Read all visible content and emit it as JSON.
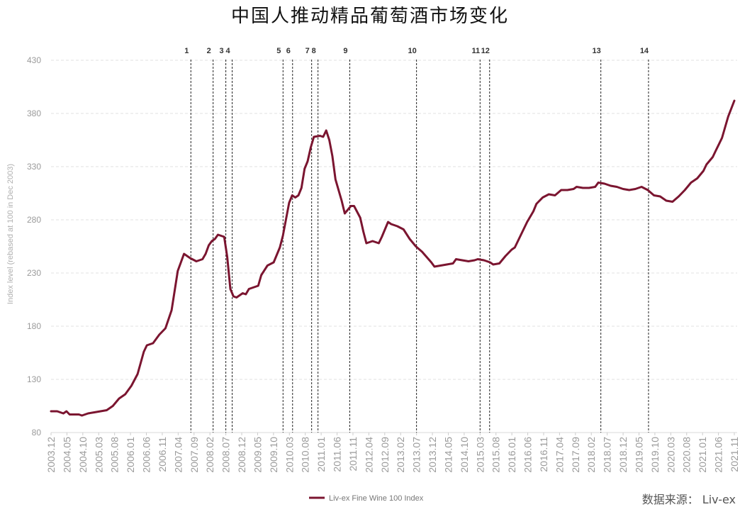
{
  "title": "中国人推动精品葡萄酒市场变化",
  "source": "数据来源： Liv-ex",
  "chart_data": {
    "type": "line",
    "title": "中国人推动精品葡萄酒市场变化",
    "ylabel": "Index level (rebased at 100 in Dec 2003)",
    "xlabel": "",
    "ylim": [
      80,
      430
    ],
    "yticks": [
      80,
      130,
      180,
      230,
      280,
      330,
      380,
      430
    ],
    "grid": "horizontal dashed",
    "legend_position": "bottom-center",
    "color": "#7b1530",
    "x_tick_labels": [
      "2003.12",
      "2004.05",
      "2004.10",
      "2005.03",
      "2005.08",
      "2006.01",
      "2006.06",
      "2006.11",
      "2007.04",
      "2007.09",
      "2008.02",
      "2008.07",
      "2008.12",
      "2009.05",
      "2009.10",
      "2010.03",
      "2010.08",
      "2011.01",
      "2011.06",
      "2011.11",
      "2012.04",
      "2012.09",
      "2013.02",
      "2013.07",
      "2013.12",
      "2014.05",
      "2014.10",
      "2015.03",
      "2015.08",
      "2016.01",
      "2016.06",
      "2016.11",
      "2017.04",
      "2017.09",
      "2018.02",
      "2018.07",
      "2018.12",
      "2019.05",
      "2019.10",
      "2020.03",
      "2020.08",
      "2021.01",
      "2021.06",
      "2021.11"
    ],
    "events": [
      {
        "label": "1",
        "date": "2007.08"
      },
      {
        "label": "2",
        "date": "2008.03"
      },
      {
        "label": "3",
        "date": "2008.07"
      },
      {
        "label": "4",
        "date": "2008.09"
      },
      {
        "label": "5",
        "date": "2010.01"
      },
      {
        "label": "6",
        "date": "2010.04"
      },
      {
        "label": "7",
        "date": "2010.10"
      },
      {
        "label": "8",
        "date": "2010.12"
      },
      {
        "label": "9",
        "date": "2011.10"
      },
      {
        "label": "10",
        "date": "2013.07"
      },
      {
        "label": "11",
        "date": "2015.03"
      },
      {
        "label": "12",
        "date": "2015.06"
      },
      {
        "label": "13",
        "date": "2018.05"
      },
      {
        "label": "14",
        "date": "2019.08"
      }
    ],
    "series": [
      {
        "name": "Liv-ex Fine Wine 100 Index",
        "points": [
          [
            "2003.12",
            100
          ],
          [
            "2004.02",
            100
          ],
          [
            "2004.04",
            98
          ],
          [
            "2004.05",
            100
          ],
          [
            "2004.06",
            97
          ],
          [
            "2004.09",
            97
          ],
          [
            "2004.10",
            96
          ],
          [
            "2004.12",
            98
          ],
          [
            "2005.02",
            99
          ],
          [
            "2005.04",
            100
          ],
          [
            "2005.06",
            101
          ],
          [
            "2005.08",
            105
          ],
          [
            "2005.10",
            112
          ],
          [
            "2005.12",
            116
          ],
          [
            "2006.02",
            124
          ],
          [
            "2006.04",
            135
          ],
          [
            "2006.06",
            156
          ],
          [
            "2006.07",
            162
          ],
          [
            "2006.09",
            164
          ],
          [
            "2006.11",
            172
          ],
          [
            "2007.01",
            178
          ],
          [
            "2007.03",
            195
          ],
          [
            "2007.05",
            232
          ],
          [
            "2007.07",
            248
          ],
          [
            "2007.09",
            244
          ],
          [
            "2007.11",
            241
          ],
          [
            "2008.01",
            243
          ],
          [
            "2008.02",
            248
          ],
          [
            "2008.03",
            256
          ],
          [
            "2008.04",
            260
          ],
          [
            "2008.05",
            262
          ],
          [
            "2008.06",
            266
          ],
          [
            "2008.07",
            265
          ],
          [
            "2008.08",
            264
          ],
          [
            "2008.09",
            245
          ],
          [
            "2008.10",
            215
          ],
          [
            "2008.11",
            208
          ],
          [
            "2008.12",
            207
          ],
          [
            "2009.02",
            211
          ],
          [
            "2009.03",
            210
          ],
          [
            "2009.04",
            215
          ],
          [
            "2009.06",
            217
          ],
          [
            "2009.07",
            218
          ],
          [
            "2009.08",
            228
          ],
          [
            "2009.10",
            237
          ],
          [
            "2009.12",
            240
          ],
          [
            "2010.02",
            254
          ],
          [
            "2010.03",
            265
          ],
          [
            "2010.05",
            296
          ],
          [
            "2010.06",
            303
          ],
          [
            "2010.07",
            301
          ],
          [
            "2010.08",
            303
          ],
          [
            "2010.09",
            310
          ],
          [
            "2010.10",
            328
          ],
          [
            "2010.11",
            335
          ],
          [
            "2010.12",
            348
          ],
          [
            "2011.01",
            358
          ],
          [
            "2011.03",
            359
          ],
          [
            "2011.04",
            358
          ],
          [
            "2011.05",
            364
          ],
          [
            "2011.06",
            355
          ],
          [
            "2011.07",
            340
          ],
          [
            "2011.08",
            318
          ],
          [
            "2011.10",
            298
          ],
          [
            "2011.11",
            286
          ],
          [
            "2012.01",
            293
          ],
          [
            "2012.02",
            293
          ],
          [
            "2012.04",
            282
          ],
          [
            "2012.05",
            269
          ],
          [
            "2012.06",
            258
          ],
          [
            "2012.08",
            260
          ],
          [
            "2012.10",
            258
          ],
          [
            "2012.11",
            264
          ],
          [
            "2013.01",
            278
          ],
          [
            "2013.02",
            276
          ],
          [
            "2013.04",
            274
          ],
          [
            "2013.06",
            271
          ],
          [
            "2013.08",
            262
          ],
          [
            "2013.10",
            255
          ],
          [
            "2013.12",
            250
          ],
          [
            "2014.03",
            240
          ],
          [
            "2014.04",
            236
          ],
          [
            "2014.06",
            237
          ],
          [
            "2014.08",
            238
          ],
          [
            "2014.10",
            239
          ],
          [
            "2014.11",
            243
          ],
          [
            "2015.01",
            242
          ],
          [
            "2015.03",
            241
          ],
          [
            "2015.05",
            242
          ],
          [
            "2015.06",
            243
          ],
          [
            "2015.08",
            242
          ],
          [
            "2015.10",
            240
          ],
          [
            "2015.11",
            238
          ],
          [
            "2016.01",
            239
          ],
          [
            "2016.03",
            246
          ],
          [
            "2016.05",
            252
          ],
          [
            "2016.06",
            254
          ],
          [
            "2016.08",
            266
          ],
          [
            "2016.10",
            278
          ],
          [
            "2016.12",
            288
          ],
          [
            "2017.01",
            295
          ],
          [
            "2017.03",
            301
          ],
          [
            "2017.05",
            304
          ],
          [
            "2017.07",
            303
          ],
          [
            "2017.09",
            308
          ],
          [
            "2017.11",
            308
          ],
          [
            "2018.01",
            309
          ],
          [
            "2018.02",
            311
          ],
          [
            "2018.04",
            310
          ],
          [
            "2018.06",
            310
          ],
          [
            "2018.08",
            311
          ],
          [
            "2018.09",
            315
          ],
          [
            "2018.11",
            314
          ],
          [
            "2019.01",
            312
          ],
          [
            "2019.03",
            311
          ],
          [
            "2019.05",
            309
          ],
          [
            "2019.07",
            308
          ],
          [
            "2019.09",
            309
          ],
          [
            "2019.11",
            311
          ],
          [
            "2020.01",
            308
          ],
          [
            "2020.03",
            303
          ],
          [
            "2020.05",
            302
          ],
          [
            "2020.07",
            298
          ],
          [
            "2020.09",
            297
          ],
          [
            "2020.11",
            302
          ],
          [
            "2021.01",
            308
          ],
          [
            "2021.03",
            315
          ],
          [
            "2021.05",
            319
          ],
          [
            "2021.07",
            326
          ],
          [
            "2021.08",
            332
          ],
          [
            "2021.10",
            339
          ],
          [
            "2021.11",
            345
          ],
          [
            "2022.01",
            357
          ],
          [
            "2022.03",
            377
          ],
          [
            "2022.05",
            392
          ]
        ]
      }
    ]
  }
}
